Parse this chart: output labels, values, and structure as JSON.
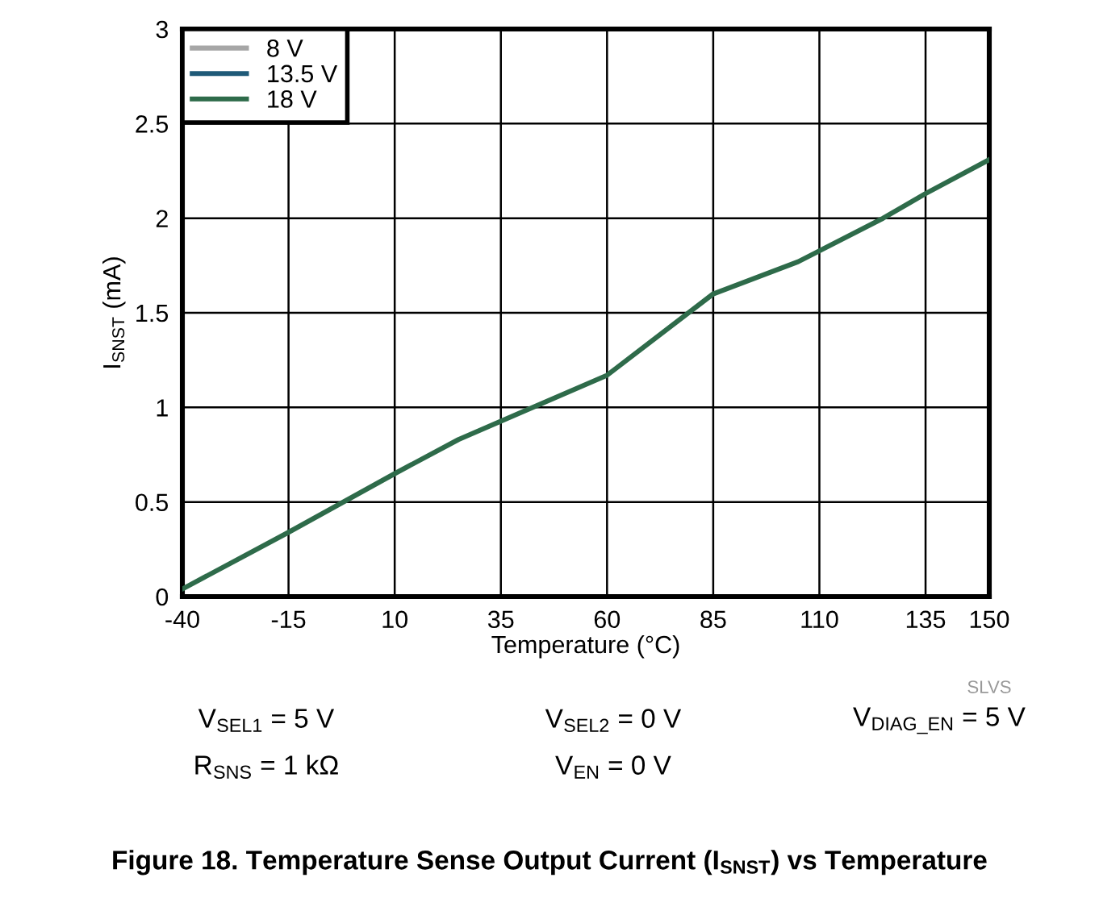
{
  "chart_data": {
    "type": "line",
    "title": "Figure 18. Temperature Sense Output Current (I$_{SNST}$) vs Temperature",
    "xlabel": "Temperature (°C)",
    "ylabel": "I$_{SNST}$ (mA)",
    "x": [
      -40,
      -15,
      10,
      25,
      60,
      85,
      105,
      125,
      135,
      150
    ],
    "series": [
      {
        "name": "8 V",
        "color": "#a6a6a6",
        "values": [
          null,
          null,
          null,
          null,
          null,
          null,
          null,
          null,
          null,
          null
        ]
      },
      {
        "name": "13.5 V",
        "color": "#1f5a78",
        "values": [
          null,
          null,
          null,
          null,
          null,
          null,
          null,
          null,
          null,
          null
        ]
      },
      {
        "name": "18 V",
        "color": "#2e6b4a",
        "values": [
          0.04,
          0.34,
          0.65,
          0.83,
          1.17,
          1.6,
          1.77,
          2.0,
          2.13,
          2.31
        ]
      }
    ],
    "xlim": [
      -40,
      150
    ],
    "xticks": [
      -40,
      -15,
      10,
      35,
      60,
      85,
      110,
      135,
      150
    ],
    "ylim": [
      0,
      3
    ],
    "yticks": [
      0,
      0.5,
      1,
      1.5,
      2,
      2.5,
      3
    ],
    "grid": true,
    "legend": "top left",
    "marker": "none",
    "line_style": "solid",
    "annotations": [
      "SLVS",
      "V$_{SEL1}$ = 5 V",
      "V$_{SEL2}$ = 0 V",
      "V$_{DIAG_EN}$ = 5 V",
      "R$_{SNS}$ = 1 kΩ",
      "V$_{EN}$ = 0 V"
    ]
  }
}
